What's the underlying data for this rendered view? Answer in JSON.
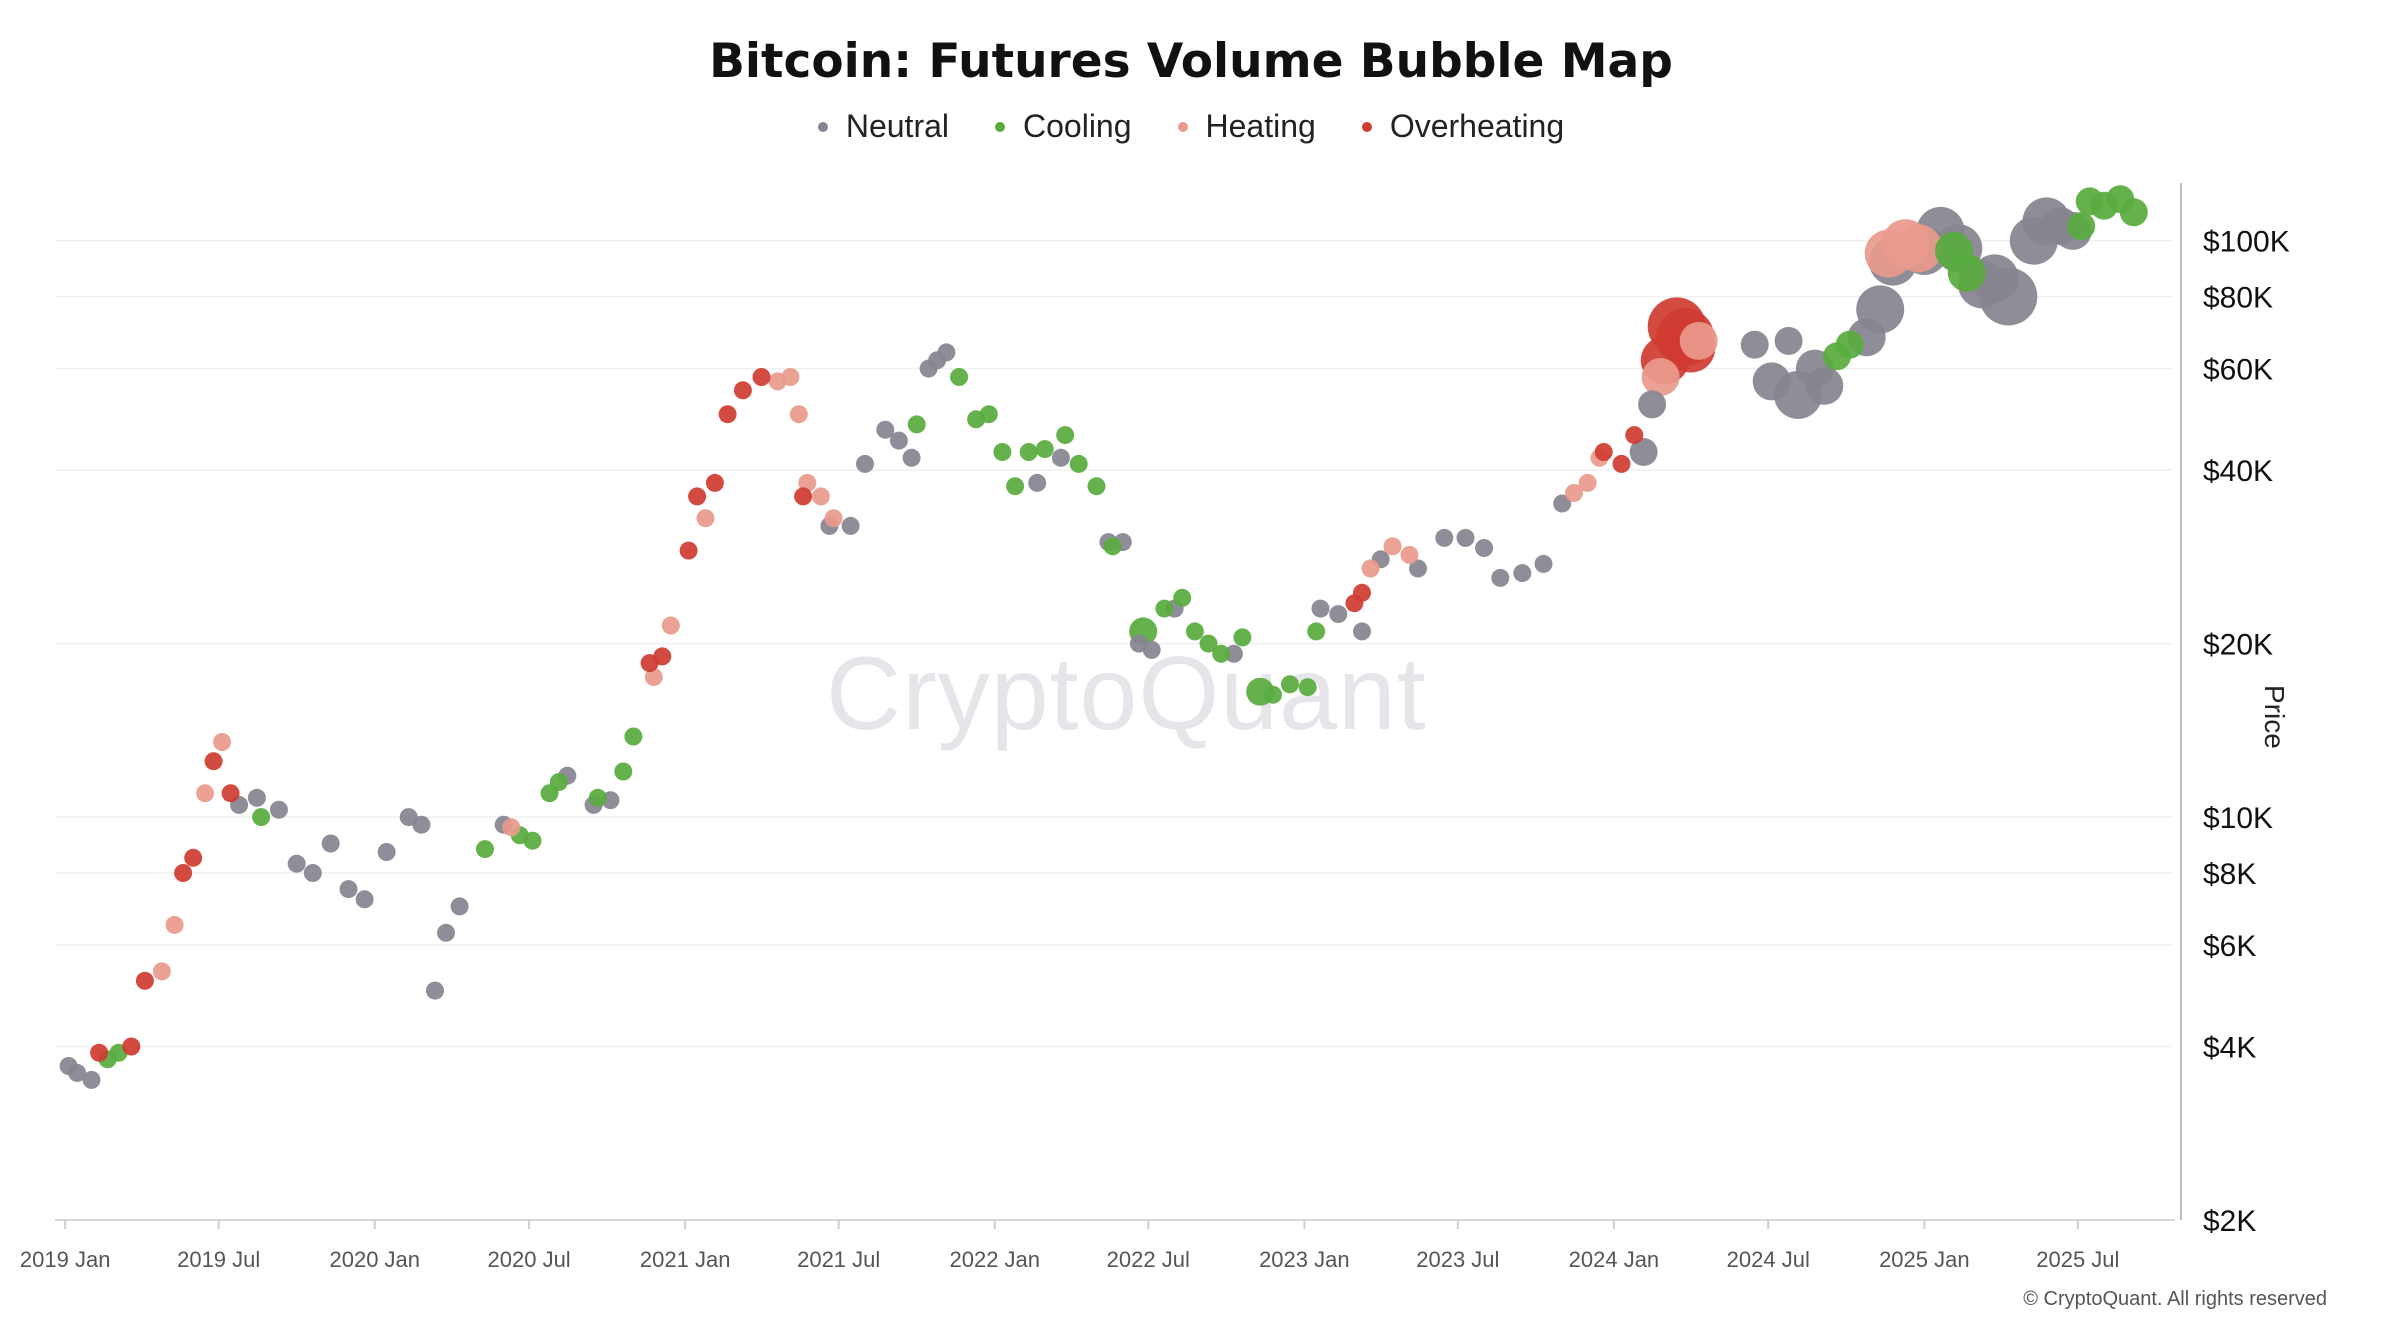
{
  "chart_data": {
    "type": "scatter",
    "title": "Bitcoin: Futures Volume Bubble Map",
    "ylabel": "Price",
    "xlabel": "",
    "y_scale": "log",
    "ylim": [
      2000,
      130000
    ],
    "xlim": [
      "2018-12-20",
      "2025-10-20"
    ],
    "x_ticks": [
      "2019 Jan",
      "2019 Jul",
      "2020 Jan",
      "2020 Jul",
      "2021 Jan",
      "2021 Jul",
      "2022 Jan",
      "2022 Jul",
      "2023 Jan",
      "2023 Jul",
      "2024 Jan",
      "2024 Jul",
      "2025 Jan",
      "2025 Jul"
    ],
    "x_tick_dates": [
      "2019-01-01",
      "2019-07-01",
      "2020-01-01",
      "2020-07-01",
      "2021-01-01",
      "2021-07-01",
      "2022-01-01",
      "2022-07-01",
      "2023-01-01",
      "2023-07-01",
      "2024-01-01",
      "2024-07-01",
      "2025-01-01",
      "2025-07-01"
    ],
    "y_ticks": [
      2000,
      4000,
      6000,
      8000,
      10000,
      20000,
      40000,
      60000,
      80000,
      100000
    ],
    "y_tick_labels": [
      "$2K",
      "$4K",
      "$6K",
      "$8K",
      "$10K",
      "$20K",
      "$40K",
      "$60K",
      "$80K",
      "$100K"
    ],
    "grid": true,
    "legend_position": "top",
    "legend": [
      {
        "name": "Neutral",
        "color": "#85848f"
      },
      {
        "name": "Cooling",
        "color": "#58ab3e"
      },
      {
        "name": "Heating",
        "color": "#e99a8c"
      },
      {
        "name": "Overheating",
        "color": "#cf3b31"
      }
    ],
    "series": [
      {
        "name": "Neutral",
        "color": "#85848f",
        "points": [
          [
            "2019-01-05",
            3700,
            1
          ],
          [
            "2019-01-15",
            3600,
            1
          ],
          [
            "2019-02-01",
            3500,
            1
          ],
          [
            "2019-07-25",
            10500,
            1
          ],
          [
            "2019-08-15",
            10800,
            1
          ],
          [
            "2019-09-10",
            10300,
            1
          ],
          [
            "2019-10-01",
            8300,
            1
          ],
          [
            "2019-10-20",
            8000,
            1
          ],
          [
            "2019-11-10",
            9000,
            1
          ],
          [
            "2019-12-01",
            7500,
            1
          ],
          [
            "2019-12-20",
            7200,
            1
          ],
          [
            "2020-01-15",
            8700,
            1
          ],
          [
            "2020-02-10",
            10000,
            1
          ],
          [
            "2020-02-25",
            9700,
            1
          ],
          [
            "2020-03-12",
            5000,
            1
          ],
          [
            "2020-03-25",
            6300,
            1
          ],
          [
            "2020-04-10",
            7000,
            1
          ],
          [
            "2020-06-01",
            9700,
            1
          ],
          [
            "2020-08-15",
            11800,
            1
          ],
          [
            "2020-09-15",
            10500,
            1
          ],
          [
            "2020-10-05",
            10700,
            1
          ],
          [
            "2021-06-20",
            32000,
            1
          ],
          [
            "2021-07-15",
            32000,
            1
          ],
          [
            "2021-08-01",
            41000,
            1
          ],
          [
            "2021-08-25",
            47000,
            1
          ],
          [
            "2021-09-10",
            45000,
            1
          ],
          [
            "2021-09-25",
            42000,
            1
          ],
          [
            "2021-10-15",
            60000,
            1
          ],
          [
            "2021-10-25",
            62000,
            1
          ],
          [
            "2021-11-05",
            64000,
            1
          ],
          [
            "2022-02-20",
            38000,
            1
          ],
          [
            "2022-03-20",
            42000,
            1
          ],
          [
            "2022-05-15",
            30000,
            1
          ],
          [
            "2022-06-01",
            30000,
            1
          ],
          [
            "2022-06-20",
            20000,
            1
          ],
          [
            "2022-07-05",
            19500,
            1
          ],
          [
            "2022-08-01",
            23000,
            1
          ],
          [
            "2022-10-10",
            19200,
            1
          ],
          [
            "2023-01-20",
            23000,
            1
          ],
          [
            "2023-02-10",
            22500,
            1
          ],
          [
            "2023-03-10",
            21000,
            1
          ],
          [
            "2023-04-01",
            28000,
            1
          ],
          [
            "2023-05-15",
            27000,
            1
          ],
          [
            "2023-06-15",
            30500,
            1
          ],
          [
            "2023-07-10",
            30500,
            1
          ],
          [
            "2023-08-01",
            29300,
            1
          ],
          [
            "2023-08-20",
            26000,
            1
          ],
          [
            "2023-09-15",
            26500,
            1
          ],
          [
            "2023-10-10",
            27500,
            1
          ],
          [
            "2023-11-01",
            35000,
            1
          ],
          [
            "2024-02-05",
            43000,
            2
          ],
          [
            "2024-02-15",
            52000,
            2
          ],
          [
            "2024-06-15",
            66000,
            2
          ],
          [
            "2024-07-05",
            57000,
            3
          ],
          [
            "2024-07-25",
            67000,
            2
          ],
          [
            "2024-08-05",
            54000,
            4
          ],
          [
            "2024-08-25",
            60000,
            3
          ],
          [
            "2024-09-05",
            56000,
            3
          ],
          [
            "2024-10-25",
            68000,
            3
          ],
          [
            "2024-11-10",
            76000,
            4
          ],
          [
            "2024-11-25",
            92000,
            4
          ],
          [
            "2025-01-01",
            96000,
            4
          ],
          [
            "2025-01-20",
            104000,
            4
          ],
          [
            "2025-02-10",
            97000,
            4
          ],
          [
            "2025-03-10",
            84000,
            4
          ],
          [
            "2025-03-25",
            86000,
            4
          ],
          [
            "2025-04-10",
            80000,
            5
          ],
          [
            "2025-05-10",
            100000,
            4
          ],
          [
            "2025-05-25",
            108000,
            4
          ],
          [
            "2025-06-10",
            106000,
            3
          ],
          [
            "2025-06-25",
            104000,
            3
          ]
        ]
      },
      {
        "name": "Cooling",
        "color": "#58ab3e",
        "points": [
          [
            "2019-02-20",
            3800,
            1
          ],
          [
            "2019-03-05",
            3900,
            1
          ],
          [
            "2019-08-20",
            10000,
            1
          ],
          [
            "2020-05-10",
            8800,
            1
          ],
          [
            "2020-06-20",
            9300,
            1
          ],
          [
            "2020-07-05",
            9100,
            1
          ],
          [
            "2020-07-25",
            11000,
            1
          ],
          [
            "2020-08-05",
            11500,
            1
          ],
          [
            "2020-09-20",
            10800,
            1
          ],
          [
            "2020-10-20",
            12000,
            1
          ],
          [
            "2020-11-01",
            13800,
            1
          ],
          [
            "2021-10-01",
            48000,
            1
          ],
          [
            "2021-11-20",
            58000,
            1
          ],
          [
            "2021-12-10",
            49000,
            1
          ],
          [
            "2021-12-25",
            50000,
            1
          ],
          [
            "2022-01-10",
            43000,
            1
          ],
          [
            "2022-01-25",
            37500,
            1
          ],
          [
            "2022-02-10",
            43000,
            1
          ],
          [
            "2022-03-01",
            43500,
            1
          ],
          [
            "2022-03-25",
            46000,
            1
          ],
          [
            "2022-04-10",
            41000,
            1
          ],
          [
            "2022-05-01",
            37500,
            1
          ],
          [
            "2022-05-20",
            29500,
            1
          ],
          [
            "2022-06-25",
            21000,
            2
          ],
          [
            "2022-07-20",
            23000,
            1
          ],
          [
            "2022-08-10",
            24000,
            1
          ],
          [
            "2022-08-25",
            21000,
            1
          ],
          [
            "2022-09-10",
            20000,
            1
          ],
          [
            "2022-09-25",
            19200,
            1
          ],
          [
            "2022-10-20",
            20500,
            1
          ],
          [
            "2022-11-10",
            16500,
            2
          ],
          [
            "2022-11-25",
            16300,
            1
          ],
          [
            "2022-12-15",
            17000,
            1
          ],
          [
            "2023-01-05",
            16800,
            1
          ],
          [
            "2023-01-15",
            21000,
            1
          ],
          [
            "2024-09-20",
            63000,
            2
          ],
          [
            "2024-10-05",
            66000,
            2
          ],
          [
            "2025-02-05",
            96000,
            3
          ],
          [
            "2025-02-20",
            88000,
            3
          ],
          [
            "2025-07-05",
            106000,
            2
          ],
          [
            "2025-07-15",
            117000,
            2
          ],
          [
            "2025-08-01",
            115000,
            2
          ],
          [
            "2025-08-20",
            118000,
            2
          ],
          [
            "2025-09-05",
            112000,
            2
          ]
        ]
      },
      {
        "name": "Heating",
        "color": "#e99a8c",
        "points": [
          [
            "2019-04-25",
            5400,
            1
          ],
          [
            "2019-05-10",
            6500,
            1
          ],
          [
            "2019-06-15",
            11000,
            1
          ],
          [
            "2019-07-05",
            13500,
            1
          ],
          [
            "2020-06-10",
            9600,
            1
          ],
          [
            "2020-11-25",
            17500,
            1
          ],
          [
            "2020-12-15",
            21500,
            1
          ],
          [
            "2021-01-25",
            33000,
            1
          ],
          [
            "2021-04-20",
            57000,
            1
          ],
          [
            "2021-05-05",
            58000,
            1
          ],
          [
            "2021-05-15",
            50000,
            1
          ],
          [
            "2021-05-25",
            38000,
            1
          ],
          [
            "2021-06-10",
            36000,
            1
          ],
          [
            "2021-06-25",
            33000,
            1
          ],
          [
            "2023-03-20",
            27000,
            1
          ],
          [
            "2023-04-15",
            29500,
            1
          ],
          [
            "2023-05-05",
            28500,
            1
          ],
          [
            "2023-11-15",
            36500,
            1
          ],
          [
            "2023-12-01",
            38000,
            1
          ],
          [
            "2023-12-15",
            42000,
            1
          ],
          [
            "2024-02-25",
            58000,
            3
          ],
          [
            "2024-04-10",
            67000,
            3
          ],
          [
            "2024-11-20",
            95000,
            4
          ],
          [
            "2024-12-10",
            99000,
            4
          ],
          [
            "2024-12-25",
            97000,
            4
          ]
        ]
      },
      {
        "name": "Overheating",
        "color": "#cf3b31",
        "points": [
          [
            "2019-02-10",
            3900,
            1
          ],
          [
            "2019-03-20",
            4000,
            1
          ],
          [
            "2019-04-05",
            5200,
            1
          ],
          [
            "2019-05-20",
            8000,
            1
          ],
          [
            "2019-06-01",
            8500,
            1
          ],
          [
            "2019-06-25",
            12500,
            1
          ],
          [
            "2019-07-15",
            11000,
            1
          ],
          [
            "2020-11-20",
            18500,
            1
          ],
          [
            "2020-12-05",
            19000,
            1
          ],
          [
            "2021-01-05",
            29000,
            1
          ],
          [
            "2021-01-15",
            36000,
            1
          ],
          [
            "2021-02-05",
            38000,
            1
          ],
          [
            "2021-02-20",
            50000,
            1
          ],
          [
            "2021-03-10",
            55000,
            1
          ],
          [
            "2021-04-01",
            58000,
            1
          ],
          [
            "2021-05-20",
            36000,
            1
          ],
          [
            "2023-03-01",
            23500,
            1
          ],
          [
            "2023-03-10",
            24500,
            1
          ],
          [
            "2023-12-20",
            43000,
            1
          ],
          [
            "2024-01-10",
            41000,
            1
          ],
          [
            "2024-01-25",
            46000,
            1
          ],
          [
            "2024-03-01",
            62000,
            4
          ],
          [
            "2024-03-15",
            71000,
            5
          ],
          [
            "2024-03-25",
            68000,
            5
          ],
          [
            "2024-04-01",
            65000,
            4
          ]
        ]
      }
    ]
  },
  "watermark": "CryptoQuant",
  "copyright": "© CryptoQuant. All rights reserved"
}
